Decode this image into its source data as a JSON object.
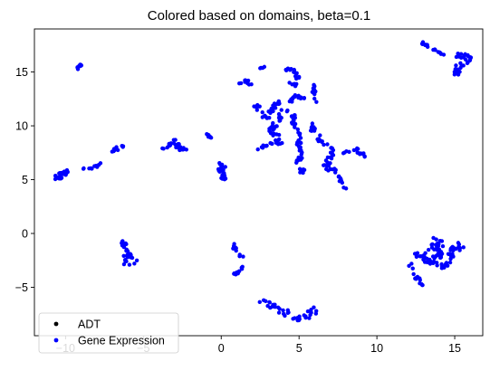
{
  "chart_data": {
    "type": "scatter",
    "title": "Colored based on domains, beta=0.1",
    "xlabel": "",
    "ylabel": "",
    "xlim": [
      -12,
      16.8
    ],
    "ylim": [
      -9.5,
      19
    ],
    "x_ticks": [
      -10,
      -5,
      0,
      5,
      10,
      15
    ],
    "y_ticks": [
      -5,
      0,
      5,
      10,
      15
    ],
    "grid": false,
    "legend_position": "lower-left",
    "series": [
      {
        "name": "ADT",
        "color": "#000000",
        "marker_size": 2.2,
        "clusters": []
      },
      {
        "name": "Gene Expression",
        "color": "#0000ff",
        "marker_size": 2.2,
        "clusters": [
          {
            "polyline": [
              [
                -10.6,
                5.1
              ],
              [
                -10.4,
                5.5
              ],
              [
                -10.1,
                5.5
              ],
              [
                -9.9,
                5.8
              ],
              [
                -10.3,
                5.2
              ],
              [
                -10.7,
                5.3
              ]
            ],
            "spread": 0.15,
            "n": 26
          },
          {
            "polyline": [
              [
                -9.3,
                15.3
              ],
              [
                -9.0,
                15.7
              ]
            ],
            "spread": 0.08,
            "n": 10
          },
          {
            "polyline": [
              [
                -8.8,
                6.0
              ],
              [
                -8.3,
                6.1
              ],
              [
                -7.9,
                6.3
              ],
              [
                -7.7,
                6.6
              ]
            ],
            "spread": 0.12,
            "n": 12
          },
          {
            "polyline": [
              [
                -7.0,
                7.4
              ],
              [
                -6.7,
                7.9
              ],
              [
                -6.3,
                8.1
              ],
              [
                -6.0,
                8.2
              ]
            ],
            "spread": 0.12,
            "n": 12
          },
          {
            "polyline": [
              [
                -4.2,
                7.9
              ],
              [
                -3.6,
                8.0
              ],
              [
                -3.1,
                8.3
              ],
              [
                -2.9,
                8.6
              ],
              [
                -2.7,
                7.9
              ],
              [
                -2.3,
                7.8
              ]
            ],
            "spread": 0.15,
            "n": 28
          },
          {
            "polyline": [
              [
                -0.9,
                9.2
              ],
              [
                -0.6,
                8.8
              ]
            ],
            "spread": 0.08,
            "n": 8
          },
          {
            "polyline": [
              [
                0.0,
                6.4
              ],
              [
                0.2,
                6.2
              ],
              [
                -0.1,
                5.9
              ],
              [
                0.2,
                5.5
              ],
              [
                0.0,
                5.2
              ],
              [
                0.2,
                5.0
              ]
            ],
            "spread": 0.15,
            "n": 30
          },
          {
            "polyline": [
              [
                2.2,
                12.0
              ],
              [
                2.6,
                11.2
              ],
              [
                2.9,
                10.7
              ],
              [
                3.2,
                11.4
              ],
              [
                3.6,
                12.3
              ],
              [
                3.8,
                11.1
              ],
              [
                3.6,
                10.3
              ],
              [
                3.2,
                9.6
              ],
              [
                3.6,
                8.9
              ],
              [
                3.7,
                8.4
              ]
            ],
            "spread": 0.18,
            "n": 62
          },
          {
            "polyline": [
              [
                2.4,
                7.8
              ],
              [
                2.9,
                8.2
              ],
              [
                3.3,
                8.4
              ],
              [
                3.8,
                8.3
              ]
            ],
            "spread": 0.15,
            "n": 14
          },
          {
            "polyline": [
              [
                4.3,
                12.2
              ],
              [
                4.7,
                12.6
              ],
              [
                5.0,
                12.8
              ],
              [
                5.3,
                12.4
              ]
            ],
            "spread": 0.15,
            "n": 18
          },
          {
            "polyline": [
              [
                4.4,
                11.5
              ],
              [
                4.8,
                10.8
              ],
              [
                4.7,
                10.1
              ],
              [
                4.9,
                9.5
              ],
              [
                5.1,
                8.8
              ],
              [
                5.0,
                8.0
              ],
              [
                5.1,
                7.4
              ],
              [
                4.9,
                6.5
              ],
              [
                5.2,
                5.9
              ],
              [
                5.3,
                5.2
              ]
            ],
            "spread": 0.18,
            "n": 46
          },
          {
            "polyline": [
              [
                5.9,
                13.8
              ],
              [
                6.0,
                12.8
              ],
              [
                6.2,
                11.8
              ]
            ],
            "spread": 0.12,
            "n": 12
          },
          {
            "polyline": [
              [
                5.8,
                10.2
              ],
              [
                6.0,
                9.3
              ],
              [
                6.3,
                8.8
              ],
              [
                6.6,
                8.3
              ],
              [
                6.9,
                8.1
              ],
              [
                7.2,
                7.7
              ],
              [
                7.0,
                7.0
              ],
              [
                6.7,
                6.4
              ],
              [
                6.9,
                5.8
              ]
            ],
            "spread": 0.18,
            "n": 40
          },
          {
            "polyline": [
              [
                7.2,
                6.1
              ],
              [
                7.4,
                5.5
              ],
              [
                7.7,
                4.9
              ],
              [
                7.9,
                4.3
              ],
              [
                8.0,
                4.0
              ]
            ],
            "spread": 0.12,
            "n": 14
          },
          {
            "polyline": [
              [
                7.8,
                7.2
              ],
              [
                8.2,
                7.7
              ],
              [
                8.6,
                7.9
              ],
              [
                9.0,
                7.4
              ],
              [
                9.4,
                7.2
              ]
            ],
            "spread": 0.15,
            "n": 16
          },
          {
            "polyline": [
              [
                2.5,
                15.4
              ],
              [
                2.8,
                15.5
              ]
            ],
            "spread": 0.06,
            "n": 4
          },
          {
            "polyline": [
              [
                4.0,
                15.2
              ],
              [
                4.5,
                15.3
              ],
              [
                4.9,
                14.6
              ],
              [
                4.7,
                13.8
              ],
              [
                4.3,
                13.9
              ]
            ],
            "spread": 0.15,
            "n": 22
          },
          {
            "polyline": [
              [
                1.2,
                14.0
              ],
              [
                1.5,
                14.2
              ],
              [
                1.8,
                14.0
              ],
              [
                1.9,
                13.8
              ]
            ],
            "spread": 0.12,
            "n": 10
          },
          {
            "polyline": [
              [
                12.9,
                17.7
              ],
              [
                13.4,
                17.3
              ],
              [
                13.9,
                16.9
              ],
              [
                14.4,
                16.6
              ]
            ],
            "spread": 0.12,
            "n": 16
          },
          {
            "polyline": [
              [
                15.0,
                16.6
              ],
              [
                15.6,
                16.5
              ],
              [
                16.1,
                16.2
              ],
              [
                15.6,
                15.7
              ],
              [
                15.1,
                15.3
              ],
              [
                15.2,
                14.6
              ]
            ],
            "spread": 0.2,
            "n": 36
          },
          {
            "polyline": [
              [
                -6.5,
                -3.0
              ],
              [
                -6.2,
                -2.5
              ],
              [
                -6.1,
                -1.7
              ],
              [
                -6.3,
                -0.8
              ],
              [
                -5.9,
                -2.0
              ],
              [
                -5.6,
                -2.5
              ],
              [
                -5.3,
                -2.8
              ],
              [
                -5.8,
                -3.0
              ]
            ],
            "spread": 0.15,
            "n": 30
          },
          {
            "polyline": [
              [
                0.8,
                -1.0
              ],
              [
                0.9,
                -1.6
              ],
              [
                1.1,
                -2.0
              ],
              [
                1.4,
                -2.2
              ]
            ],
            "spread": 0.1,
            "n": 12
          },
          {
            "polyline": [
              [
                0.3,
                -4.3
              ],
              [
                0.8,
                -3.9
              ],
              [
                1.2,
                -3.4
              ],
              [
                1.4,
                -2.9
              ]
            ],
            "spread": 0.1,
            "n": 10
          },
          {
            "polyline": [
              [
                2.7,
                -6.2
              ],
              [
                3.3,
                -6.7
              ],
              [
                3.8,
                -7.0
              ],
              [
                4.4,
                -7.6
              ],
              [
                5.0,
                -8.0
              ],
              [
                5.5,
                -7.6
              ],
              [
                6.0,
                -7.1
              ],
              [
                6.4,
                -7.2
              ]
            ],
            "spread": 0.25,
            "n": 40
          },
          {
            "polyline": [
              [
                12.0,
                -2.7
              ],
              [
                12.3,
                -3.3
              ],
              [
                12.6,
                -4.2
              ],
              [
                12.9,
                -4.8
              ]
            ],
            "spread": 0.15,
            "n": 14
          },
          {
            "polyline": [
              [
                12.4,
                -1.8
              ],
              [
                12.9,
                -2.0
              ],
              [
                13.3,
                -2.6
              ],
              [
                13.6,
                -1.4
              ],
              [
                13.9,
                -0.6
              ],
              [
                14.0,
                -1.9
              ],
              [
                13.7,
                -3.0
              ],
              [
                14.3,
                -3.1
              ],
              [
                14.6,
                -2.5
              ],
              [
                15.0,
                -1.6
              ],
              [
                15.3,
                -1.1
              ],
              [
                14.7,
                -1.3
              ]
            ],
            "spread": 0.3,
            "n": 90
          }
        ]
      }
    ]
  }
}
